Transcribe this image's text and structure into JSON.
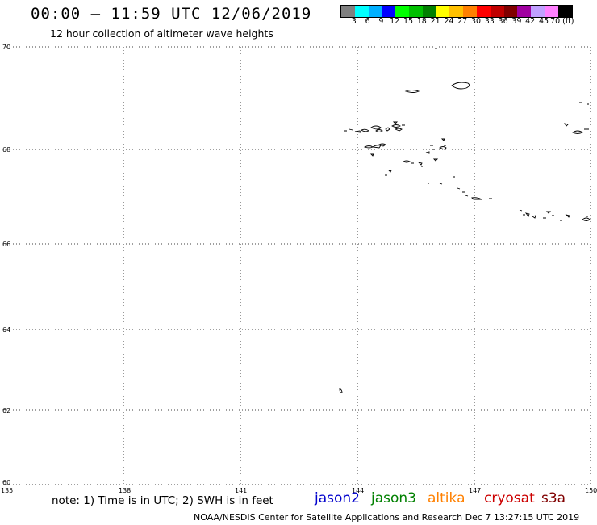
{
  "title": "00:00 – 11:59 UTC 12/06/2019",
  "subtitle": "12 hour collection of altimeter wave heights",
  "colorbar": {
    "colors": [
      "#808080",
      "#00ffff",
      "#00b0ff",
      "#0000ff",
      "#00ff00",
      "#00c000",
      "#008000",
      "#ffff00",
      "#ffc000",
      "#ff8000",
      "#ff0000",
      "#c00000",
      "#800000",
      "#a000a0",
      "#c0a0ff",
      "#ff80ff",
      "#000000"
    ],
    "labels": [
      "3",
      "6",
      "9",
      "12",
      "15",
      "18",
      "21",
      "24",
      "27",
      "30",
      "33",
      "36",
      "39",
      "42",
      "45",
      "70 (ft)"
    ]
  },
  "map": {
    "lon_labels": [
      "135",
      "138",
      "141",
      "144",
      "147",
      "150"
    ],
    "lat_labels": [
      "70",
      "68",
      "66",
      "64",
      "62",
      "60"
    ]
  },
  "note": "note: 1) Time is in UTC; 2) SWH is in feet",
  "satellites": [
    {
      "name": "jason2",
      "color": "#0000cc"
    },
    {
      "name": "jason3",
      "color": "#008000"
    },
    {
      "name": "altika",
      "color": "#ff8000"
    },
    {
      "name": "cryosat",
      "color": "#cc0000"
    },
    {
      "name": "s3a",
      "color": "#800000"
    }
  ],
  "credit": "NOAA/NESDIS Center for Satellite Applications and Research    Dec  7 13:27:15 UTC 2019"
}
